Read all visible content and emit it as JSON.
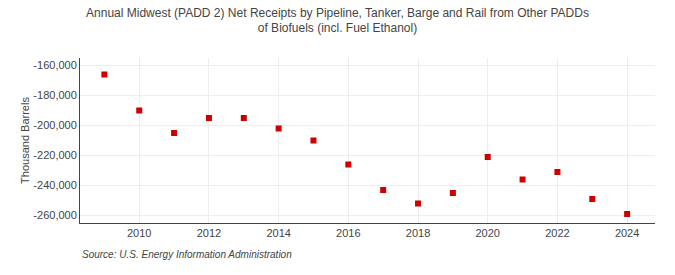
{
  "chart_data": {
    "type": "scatter",
    "title": "Annual Midwest (PADD 2) Net Receipts by Pipeline, Tanker, Barge and Rail from Other PADDs\nof Biofuels (incl. Fuel Ethanol)",
    "ylabel": "Thousand Barrels",
    "source": "Source: U.S. Energy Information Administration",
    "x": [
      2009,
      2010,
      2011,
      2012,
      2013,
      2014,
      2015,
      2016,
      2017,
      2018,
      2019,
      2020,
      2021,
      2022,
      2023,
      2024
    ],
    "values": [
      -166000,
      -190000,
      -205000,
      -195000,
      -195000,
      -202000,
      -210000,
      -226000,
      -243000,
      -252000,
      -245000,
      -221000,
      -236000,
      -231000,
      -249000,
      -259000
    ],
    "color": "#cc0000",
    "marker": "square",
    "xlim": [
      2008.3,
      2024.8
    ],
    "xticks": [
      2010,
      2012,
      2014,
      2016,
      2018,
      2020,
      2022,
      2024
    ],
    "ylim": [
      -265000,
      -155000
    ],
    "yticks": [
      {
        "value": -260000,
        "label": "-260,000"
      },
      {
        "value": -240000,
        "label": "-240,000"
      },
      {
        "value": -220000,
        "label": "-220,000"
      },
      {
        "value": -200000,
        "label": "-200,000"
      },
      {
        "value": -180000,
        "label": "-180,000"
      },
      {
        "value": -160000,
        "label": "-160,000"
      }
    ],
    "grid": true
  }
}
